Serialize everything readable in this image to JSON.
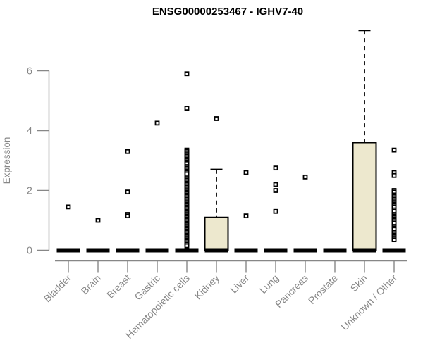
{
  "chart_data": {
    "type": "boxplot",
    "title": "ENSG00000253467 - IGHV7-40",
    "ylabel": "Expression",
    "xlabel": "",
    "ylim": [
      0,
      7.6
    ],
    "yticks": [
      0,
      2,
      4,
      6
    ],
    "grid": false,
    "legend": null,
    "colors": {
      "box_fill": "#ede8ce",
      "box_stroke": "#000000",
      "axis": "#878787",
      "title": "#000000",
      "background": "#ffffff"
    },
    "categories": [
      "Bladder",
      "Brain",
      "Breast",
      "Gastric",
      "Hematopoietic cells",
      "Kidney",
      "Liver",
      "Lung",
      "Pancreas",
      "Prostate",
      "Skin",
      "Unknown / Other"
    ],
    "boxes": [
      {
        "label": "Bladder",
        "whisker_low": 0,
        "q1": 0,
        "median": 0,
        "q3": 0,
        "whisker_high": 0,
        "outliers": [
          1.45
        ]
      },
      {
        "label": "Brain",
        "whisker_low": 0,
        "q1": 0,
        "median": 0,
        "q3": 0,
        "whisker_high": 0,
        "outliers": [
          1.0
        ]
      },
      {
        "label": "Breast",
        "whisker_low": 0,
        "q1": 0,
        "median": 0,
        "q3": 0,
        "whisker_high": 0,
        "outliers": [
          3.3,
          1.95,
          1.2,
          1.15
        ]
      },
      {
        "label": "Gastric",
        "whisker_low": 0,
        "q1": 0,
        "median": 0,
        "q3": 0,
        "whisker_high": 0,
        "outliers": [
          4.25
        ]
      },
      {
        "label": "Hematopoietic cells",
        "whisker_low": 0,
        "q1": 0,
        "median": 0,
        "q3": 0,
        "whisker_high": 0,
        "outliers": [
          5.9,
          4.75,
          3.35,
          3.3,
          3.25,
          3.2,
          3.15,
          3.1,
          3.05,
          3.0,
          2.95,
          2.9,
          2.8,
          2.75,
          2.7,
          2.65,
          2.6,
          2.55,
          2.45,
          2.4,
          2.35,
          2.3,
          2.25,
          2.2,
          2.15,
          2.1,
          2.05,
          2.0,
          1.95,
          1.9,
          1.85,
          1.8,
          1.75,
          1.7,
          1.65,
          1.6,
          1.55,
          1.5,
          1.45,
          1.4,
          1.35,
          1.3,
          1.25,
          1.2,
          1.15,
          1.1,
          1.05,
          1.0,
          0.95,
          0.9,
          0.85,
          0.8,
          0.75,
          0.7,
          0.65,
          0.6,
          0.55,
          0.5,
          0.45,
          0.4,
          0.35,
          0.3,
          0.25,
          0.2,
          0.15
        ]
      },
      {
        "label": "Kidney",
        "whisker_low": 0,
        "q1": 0,
        "median": 0,
        "q3": 1.1,
        "whisker_high": 2.7,
        "outliers": [
          4.4
        ]
      },
      {
        "label": "Liver",
        "whisker_low": 0,
        "q1": 0,
        "median": 0,
        "q3": 0,
        "whisker_high": 0,
        "outliers": [
          2.6,
          1.15
        ]
      },
      {
        "label": "Lung",
        "whisker_low": 0,
        "q1": 0,
        "median": 0,
        "q3": 0,
        "whisker_high": 0,
        "outliers": [
          2.75,
          2.2,
          2.0,
          1.3
        ]
      },
      {
        "label": "Pancreas",
        "whisker_low": 0,
        "q1": 0,
        "median": 0,
        "q3": 0,
        "whisker_high": 0,
        "outliers": [
          2.45
        ]
      },
      {
        "label": "Prostate",
        "whisker_low": 0,
        "q1": 0,
        "median": 0,
        "q3": 0,
        "whisker_high": 0,
        "outliers": []
      },
      {
        "label": "Skin",
        "whisker_low": 0,
        "q1": 0,
        "median": 0,
        "q3": 3.6,
        "whisker_high": 7.35,
        "outliers": []
      },
      {
        "label": "Unknown / Other",
        "whisker_low": 0,
        "q1": 0,
        "median": 0,
        "q3": 0,
        "whisker_high": 0,
        "outliers": [
          3.35,
          2.6,
          2.5,
          2.0,
          1.95,
          1.85,
          1.8,
          1.75,
          1.7,
          1.65,
          1.6,
          1.55,
          1.5,
          1.45,
          1.35,
          1.3,
          1.2,
          1.15,
          1.1,
          1.05,
          1.0,
          0.95,
          0.9,
          0.8,
          0.75,
          0.7,
          0.6,
          0.55,
          0.5,
          0.45,
          0.4,
          0.35
        ]
      }
    ]
  }
}
